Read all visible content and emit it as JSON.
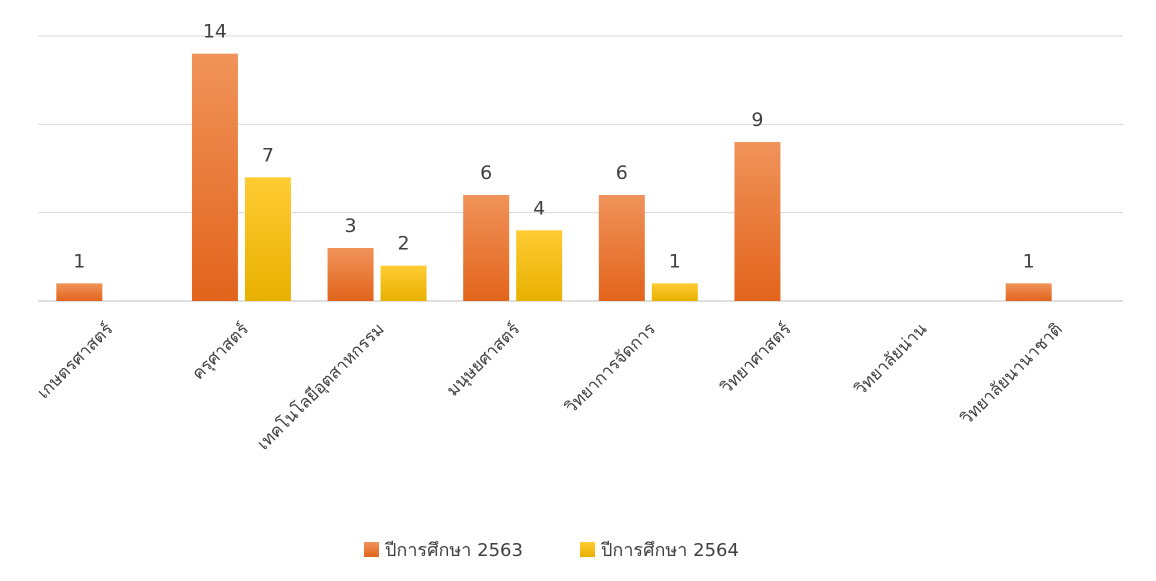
{
  "chart_data": {
    "type": "bar",
    "title": "",
    "xlabel": "",
    "ylabel": "",
    "ylim": [
      0,
      15
    ],
    "grid": true,
    "legend_position": "bottom",
    "categories": [
      "เกษตรศาสตร์",
      "ครุศาสตร์",
      "เทคโนโลยีอุตสาหกรรม",
      "มนุษยศาสตร์",
      "วิทยาการจัดการ",
      "วิทยาศาสตร์",
      "วิทยาลัยน่าน",
      "วิทยาลัยนานาชาติ"
    ],
    "series": [
      {
        "name": "ปีการศึกษา 2563",
        "color": "#ED7D31",
        "values": [
          1,
          14,
          3,
          6,
          6,
          9,
          null,
          1
        ]
      },
      {
        "name": "ปีการศึกษา 2564",
        "color": "#FFC000",
        "values": [
          null,
          7,
          2,
          4,
          1,
          null,
          null,
          null
        ]
      }
    ]
  }
}
